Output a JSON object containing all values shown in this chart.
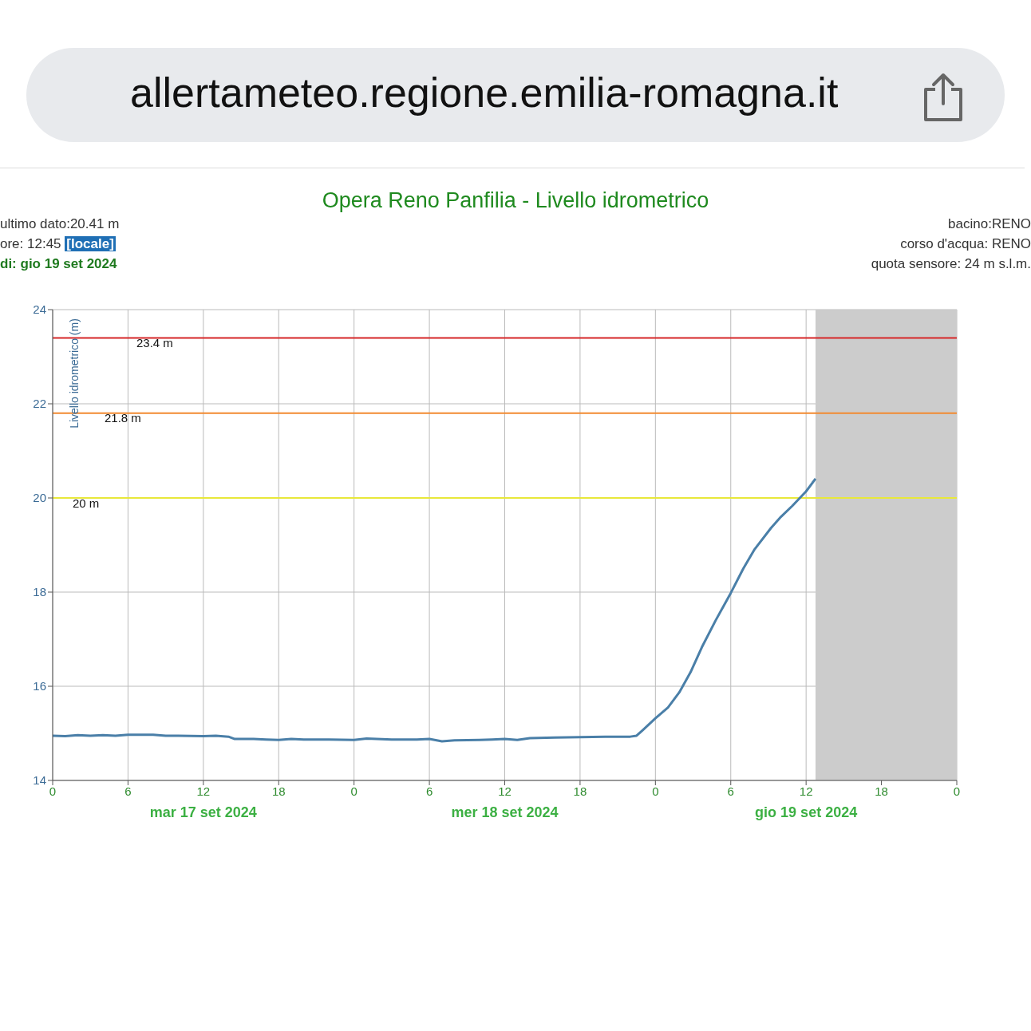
{
  "chart_data": {
    "type": "line",
    "title": "Opera Reno Panfilia - Livello idrometrico",
    "ylabel": "Livello idrometrico (m)",
    "annotations": [
      "allertameteo.regione.emilia-romagna.it",
      "ultimo dato:20.41 m",
      "ore: 12:45",
      "[locale]",
      "di: gio 19 set 2024",
      "bacino:RENO",
      "corso d'acqua: RENO",
      "quota sensore: 24 m s.l.m.",
      "mar 17 set 2024",
      "mer 18 set 2024",
      "gio 19 set 2024"
    ],
    "x": [
      "2024-09-17T00:00",
      "2024-09-17T01:00",
      "2024-09-17T02:00",
      "2024-09-17T03:00",
      "2024-09-17T04:00",
      "2024-09-17T05:00",
      "2024-09-17T06:00",
      "2024-09-17T08:00",
      "2024-09-17T09:00",
      "2024-09-17T10:00",
      "2024-09-17T12:00",
      "2024-09-17T13:00",
      "2024-09-17T14:00",
      "2024-09-17T14:30",
      "2024-09-17T16:00",
      "2024-09-17T17:00",
      "2024-09-17T18:00",
      "2024-09-17T19:00",
      "2024-09-17T20:00",
      "2024-09-17T22:00",
      "2024-09-18T00:00",
      "2024-09-18T01:00",
      "2024-09-18T03:00",
      "2024-09-18T05:00",
      "2024-09-18T06:00",
      "2024-09-18T07:00",
      "2024-09-18T08:00",
      "2024-09-18T10:00",
      "2024-09-18T11:00",
      "2024-09-18T12:00",
      "2024-09-18T13:00",
      "2024-09-18T14:00",
      "2024-09-18T16:00",
      "2024-09-18T18:00",
      "2024-09-18T20:00",
      "2024-09-18T22:00",
      "2024-09-18T22:30",
      "2024-09-18T23:00",
      "2024-09-19T00:00",
      "2024-09-19T01:00",
      "2024-09-19T01:54",
      "2024-09-19T02:48",
      "2024-09-19T03:42",
      "2024-09-19T04:48",
      "2024-09-19T06:00",
      "2024-09-19T07:00",
      "2024-09-19T07:54",
      "2024-09-19T09:12",
      "2024-09-19T10:00",
      "2024-09-19T10:54",
      "2024-09-19T12:00",
      "2024-09-19T12:45"
    ],
    "series": [
      {
        "color": "#4a7fa8",
        "values": [
          14.95,
          14.94,
          14.96,
          14.95,
          14.96,
          14.95,
          14.97,
          14.97,
          14.95,
          14.95,
          14.94,
          14.95,
          14.93,
          14.88,
          14.88,
          14.87,
          14.86,
          14.88,
          14.87,
          14.87,
          14.86,
          14.89,
          14.87,
          14.87,
          14.88,
          14.83,
          14.85,
          14.86,
          14.87,
          14.88,
          14.86,
          14.9,
          14.91,
          14.92,
          14.93,
          14.93,
          14.95,
          15.07,
          15.32,
          15.55,
          15.87,
          16.3,
          16.83,
          17.4,
          17.98,
          18.5,
          18.91,
          19.36,
          19.6,
          19.83,
          20.14,
          20.41
        ]
      }
    ],
    "xlim": [
      "2024-09-17T00:00",
      "2024-09-20T00:00"
    ],
    "xticks": [
      {
        "value": "2024-09-17T00:00",
        "label": "0"
      },
      {
        "value": "2024-09-17T06:00",
        "label": "6"
      },
      {
        "value": "2024-09-17T12:00",
        "label": "12"
      },
      {
        "value": "2024-09-17T18:00",
        "label": "18"
      },
      {
        "value": "2024-09-18T00:00",
        "label": "0"
      },
      {
        "value": "2024-09-18T06:00",
        "label": "6"
      },
      {
        "value": "2024-09-18T12:00",
        "label": "12"
      },
      {
        "value": "2024-09-18T18:00",
        "label": "18"
      },
      {
        "value": "2024-09-19T00:00",
        "label": "0"
      },
      {
        "value": "2024-09-19T06:00",
        "label": "6"
      },
      {
        "value": "2024-09-19T12:00",
        "label": "12"
      },
      {
        "value": "2024-09-19T18:00",
        "label": "18"
      },
      {
        "value": "2024-09-20T00:00",
        "label": "0"
      }
    ],
    "ylim": [
      14,
      24
    ],
    "yticks": [
      14,
      16,
      18,
      20,
      22,
      24
    ],
    "ref_lines": [
      {
        "axis": "y",
        "value": 23.4,
        "label": "23.4 m",
        "color": "#d62728"
      },
      {
        "axis": "y",
        "value": 21.8,
        "label": "21.8 m",
        "color": "#f28a30"
      },
      {
        "axis": "y",
        "value": 20,
        "label": "20 m",
        "color": "#e8e83a"
      }
    ],
    "bands": [
      {
        "axis": "x",
        "from": "2024-09-19T12:45",
        "to": "2024-09-20T00:00",
        "color": "#cccccc"
      }
    ],
    "grid": true,
    "marker": "none",
    "line_style": "solid"
  }
}
